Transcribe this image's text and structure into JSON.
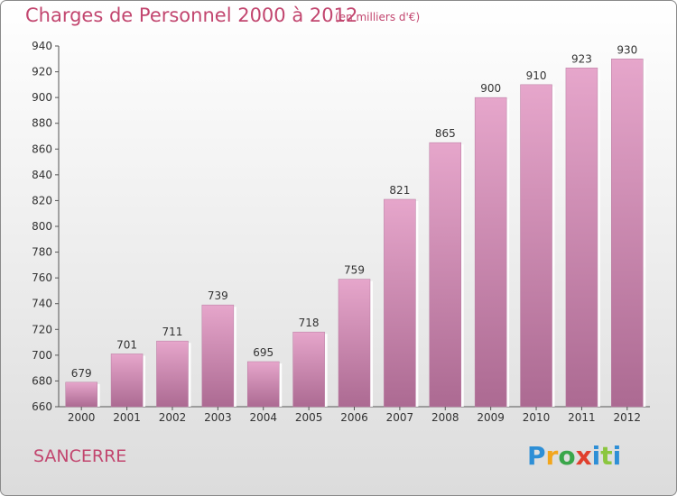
{
  "chart_data": {
    "type": "bar",
    "title": "Charges de Personnel 2000 à 2012",
    "subtitle": "(en milliers d'€)",
    "categories": [
      "2000",
      "2001",
      "2002",
      "2003",
      "2004",
      "2005",
      "2006",
      "2007",
      "2008",
      "2009",
      "2010",
      "2011",
      "2012"
    ],
    "values": [
      679,
      701,
      711,
      739,
      695,
      718,
      759,
      821,
      865,
      900,
      910,
      923,
      930
    ],
    "ylim": [
      660,
      940
    ],
    "yticks": [
      660,
      680,
      700,
      720,
      740,
      760,
      780,
      800,
      820,
      840,
      860,
      880,
      900,
      920,
      940
    ],
    "grid": false,
    "bar_color": "#d27fac"
  },
  "footer": {
    "place": "SANCERRE",
    "logo_letters": [
      "P",
      "r",
      "o",
      "x",
      "i",
      "t",
      "i"
    ],
    "logo_colors": [
      "#2e8fd6",
      "#f2a61c",
      "#3aa64a",
      "#e0402e",
      "#2e8fd6",
      "#8cc63f",
      "#2e8fd6"
    ]
  }
}
